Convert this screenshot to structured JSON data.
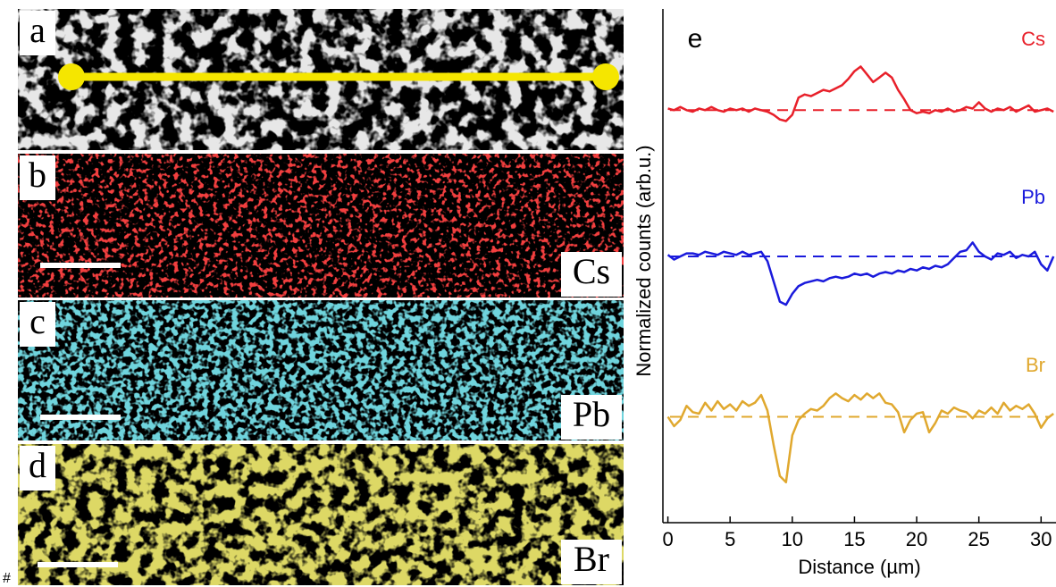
{
  "footnote": "#",
  "panels": [
    {
      "label": "a"
    },
    {
      "label": "b",
      "element": "Cs"
    },
    {
      "label": "c",
      "element": "Pb"
    },
    {
      "label": "d",
      "element": "Br"
    }
  ],
  "chart_data": {
    "type": "line",
    "panel_label": "e",
    "xlabel": "Distance (µm)",
    "ylabel": "Normalized counts (arb.u.)",
    "xlim": [
      -0.4,
      31.2
    ],
    "xticks": [
      0,
      5,
      10,
      15,
      20,
      25,
      30
    ],
    "ylim": [
      0,
      3.3
    ],
    "x": [
      0,
      0.5,
      1,
      1.5,
      2,
      2.5,
      3,
      3.5,
      4,
      4.5,
      5,
      5.5,
      6,
      6.5,
      7,
      7.5,
      8,
      8.5,
      9,
      9.5,
      10,
      10.5,
      11,
      11.5,
      12,
      12.5,
      13,
      13.5,
      14,
      14.5,
      15,
      15.5,
      16,
      16.5,
      17,
      17.5,
      18,
      18.5,
      19,
      19.5,
      20,
      20.5,
      21,
      21.5,
      22,
      22.5,
      23,
      23.5,
      24,
      24.5,
      25,
      25.5,
      26,
      26.5,
      27,
      27.5,
      28,
      28.5,
      29,
      29.5,
      30,
      30.5,
      31
    ],
    "series": [
      {
        "name": "Cs",
        "color": "#e8202a",
        "baseline": 2.65,
        "values": [
          2.66,
          2.65,
          2.67,
          2.65,
          2.64,
          2.66,
          2.65,
          2.67,
          2.65,
          2.64,
          2.66,
          2.65,
          2.66,
          2.64,
          2.66,
          2.65,
          2.64,
          2.62,
          2.59,
          2.58,
          2.62,
          2.73,
          2.75,
          2.74,
          2.76,
          2.78,
          2.77,
          2.79,
          2.81,
          2.85,
          2.9,
          2.93,
          2.88,
          2.83,
          2.86,
          2.89,
          2.86,
          2.78,
          2.72,
          2.65,
          2.63,
          2.64,
          2.63,
          2.65,
          2.64,
          2.66,
          2.64,
          2.65,
          2.67,
          2.66,
          2.7,
          2.66,
          2.64,
          2.66,
          2.65,
          2.67,
          2.64,
          2.66,
          2.68,
          2.64,
          2.65,
          2.66,
          2.64
        ]
      },
      {
        "name": "Pb",
        "color": "#1a1adc",
        "baseline": 1.71,
        "values": [
          1.72,
          1.69,
          1.71,
          1.73,
          1.73,
          1.72,
          1.74,
          1.73,
          1.72,
          1.74,
          1.73,
          1.72,
          1.74,
          1.72,
          1.73,
          1.74,
          1.68,
          1.55,
          1.42,
          1.4,
          1.47,
          1.52,
          1.54,
          1.55,
          1.56,
          1.55,
          1.57,
          1.58,
          1.57,
          1.58,
          1.6,
          1.59,
          1.6,
          1.58,
          1.6,
          1.61,
          1.6,
          1.62,
          1.61,
          1.63,
          1.62,
          1.64,
          1.63,
          1.65,
          1.64,
          1.66,
          1.7,
          1.74,
          1.75,
          1.8,
          1.74,
          1.71,
          1.69,
          1.73,
          1.72,
          1.74,
          1.7,
          1.72,
          1.71,
          1.74,
          1.66,
          1.62,
          1.71
        ]
      },
      {
        "name": "Br",
        "color": "#e0a82e",
        "baseline": 0.68,
        "values": [
          0.68,
          0.62,
          0.66,
          0.75,
          0.71,
          0.7,
          0.77,
          0.72,
          0.78,
          0.73,
          0.76,
          0.72,
          0.78,
          0.75,
          0.77,
          0.82,
          0.72,
          0.5,
          0.3,
          0.26,
          0.56,
          0.66,
          0.7,
          0.73,
          0.72,
          0.75,
          0.8,
          0.83,
          0.8,
          0.78,
          0.82,
          0.79,
          0.83,
          0.8,
          0.83,
          0.77,
          0.76,
          0.71,
          0.58,
          0.66,
          0.7,
          0.71,
          0.58,
          0.64,
          0.72,
          0.7,
          0.74,
          0.72,
          0.71,
          0.67,
          0.72,
          0.7,
          0.74,
          0.7,
          0.77,
          0.72,
          0.75,
          0.73,
          0.76,
          0.7,
          0.61,
          0.67,
          0.7
        ]
      }
    ]
  }
}
